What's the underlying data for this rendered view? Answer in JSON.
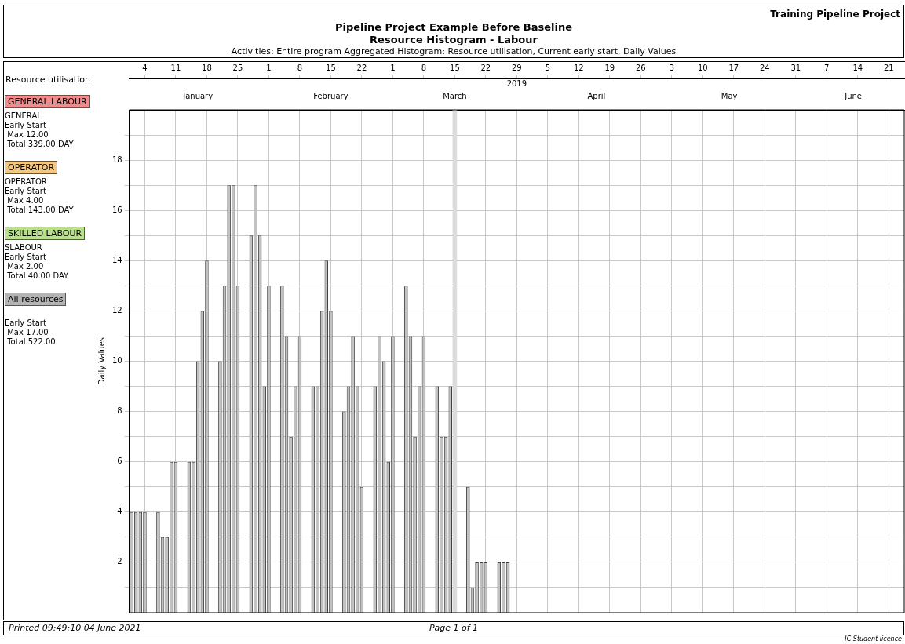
{
  "chart_data": {
    "type": "bar",
    "title": "Pipeline Project Example Before Baseline",
    "subtitle": "Resource Histogram - Labour",
    "ylabel": "Daily Values",
    "x2label": "2019",
    "annotations": [
      "Training Pipeline Project",
      "Activities: Entire program  Aggregated Histogram: Resource utilisation, Current early start, Daily Values",
      "Resource utilisation",
      "GENERAL LABOUR",
      "GENERAL\nEarly Start\n Max 12.00\n Total 339.00 DAY",
      "OPERATOR",
      "OPERATOR\nEarly Start\n Max 4.00\n Total 143.00 DAY",
      "SKILLED LABOUR",
      "SLABOUR\nEarly Start\n Max 2.00\n Total 40.00 DAY",
      "All resources",
      "\nEarly Start\n Max 17.00\n Total 522.00",
      "Printed 09:49:10 04 June 2021",
      "Page 1 of 1",
      "JC Student licence"
    ],
    "x": [
      "2019-01-01",
      "2019-01-02",
      "2019-01-03",
      "2019-01-04",
      "2019-01-07",
      "2019-01-08",
      "2019-01-09",
      "2019-01-10",
      "2019-01-11",
      "2019-01-14",
      "2019-01-15",
      "2019-01-16",
      "2019-01-17",
      "2019-01-18",
      "2019-01-21",
      "2019-01-22",
      "2019-01-23",
      "2019-01-24",
      "2019-01-25",
      "2019-01-28",
      "2019-01-29",
      "2019-01-30",
      "2019-01-31",
      "2019-02-01",
      "2019-02-04",
      "2019-02-05",
      "2019-02-06",
      "2019-02-07",
      "2019-02-08",
      "2019-02-11",
      "2019-02-12",
      "2019-02-13",
      "2019-02-14",
      "2019-02-15",
      "2019-02-18",
      "2019-02-19",
      "2019-02-20",
      "2019-02-21",
      "2019-02-22",
      "2019-02-25",
      "2019-02-26",
      "2019-02-27",
      "2019-02-28",
      "2019-03-01",
      "2019-03-04",
      "2019-03-05",
      "2019-03-06",
      "2019-03-07",
      "2019-03-08",
      "2019-03-11",
      "2019-03-12",
      "2019-03-13",
      "2019-03-14",
      "2019-03-15",
      "2019-03-18",
      "2019-03-19",
      "2019-03-20",
      "2019-03-21",
      "2019-03-22",
      "2019-03-25",
      "2019-03-26",
      "2019-03-27"
    ],
    "values": [
      4,
      4,
      4,
      4,
      4,
      3,
      3,
      6,
      6,
      6,
      6,
      10,
      12,
      14,
      10,
      13,
      17,
      17,
      13,
      15,
      17,
      15,
      9,
      13,
      13,
      11,
      7,
      9,
      11,
      9,
      9,
      12,
      14,
      12,
      8,
      9,
      11,
      9,
      5,
      9,
      11,
      10,
      6,
      11,
      13,
      11,
      7,
      9,
      11,
      9,
      7,
      7,
      9,
      null,
      5,
      1,
      2,
      2,
      2,
      2,
      2,
      2
    ],
    "color": "#c0c0c0",
    "xlim": [
      "2018-12-31T12:00",
      "2019-06-24T12:00"
    ],
    "xticks": [
      {
        "value": "2019-01-04",
        "label": "4"
      },
      {
        "value": "2019-01-11",
        "label": "11"
      },
      {
        "value": "2019-01-18",
        "label": "18"
      },
      {
        "value": "2019-01-25",
        "label": "25"
      },
      {
        "value": "2019-02-01",
        "label": "1"
      },
      {
        "value": "2019-02-08",
        "label": "8"
      },
      {
        "value": "2019-02-15",
        "label": "15"
      },
      {
        "value": "2019-02-22",
        "label": "22"
      },
      {
        "value": "2019-03-01",
        "label": "1"
      },
      {
        "value": "2019-03-08",
        "label": "8"
      },
      {
        "value": "2019-03-15",
        "label": "15"
      },
      {
        "value": "2019-03-22",
        "label": "22"
      },
      {
        "value": "2019-03-29",
        "label": "29"
      },
      {
        "value": "2019-04-05",
        "label": "5"
      },
      {
        "value": "2019-04-12",
        "label": "12"
      },
      {
        "value": "2019-04-19",
        "label": "19"
      },
      {
        "value": "2019-04-26",
        "label": "26"
      },
      {
        "value": "2019-05-03",
        "label": "3"
      },
      {
        "value": "2019-05-10",
        "label": "10"
      },
      {
        "value": "2019-05-17",
        "label": "17"
      },
      {
        "value": "2019-05-24",
        "label": "24"
      },
      {
        "value": "2019-05-31",
        "label": "31"
      },
      {
        "value": "2019-06-07",
        "label": "7"
      },
      {
        "value": "2019-06-14",
        "label": "14"
      },
      {
        "value": "2019-06-21",
        "label": "21"
      }
    ],
    "x2lim": [
      "2018-12-31T12:00",
      "2019-06-24T12:00"
    ],
    "x2ticks": [
      {
        "value": "2019-01-16",
        "label": "January"
      },
      {
        "value": "2019-02-15",
        "label": "February"
      },
      {
        "value": "2019-03-15",
        "label": "March"
      },
      {
        "value": "2019-04-16",
        "label": "April"
      },
      {
        "value": "2019-05-16",
        "label": "May"
      },
      {
        "value": "2019-06-13",
        "label": "June"
      }
    ],
    "ylim": [
      0,
      20
    ],
    "yticks": [
      {
        "value": 1,
        "label": null
      },
      2,
      {
        "value": 3,
        "label": null
      },
      4,
      {
        "value": 5,
        "label": null
      },
      6,
      {
        "value": 7,
        "label": null
      },
      8,
      {
        "value": 9,
        "label": null
      },
      10,
      {
        "value": 11,
        "label": null
      },
      12,
      {
        "value": 13,
        "label": null
      },
      14,
      {
        "value": 15,
        "label": null
      },
      16,
      {
        "value": 17,
        "label": null
      },
      18,
      {
        "value": 19,
        "label": null
      }
    ],
    "bands": [
      {
        "axis": "x",
        "from": "2019-03-14T12:00",
        "to": "2019-03-15T12:00",
        "color": "#dcdcdc"
      }
    ],
    "grid": true,
    "legend": false
  }
}
